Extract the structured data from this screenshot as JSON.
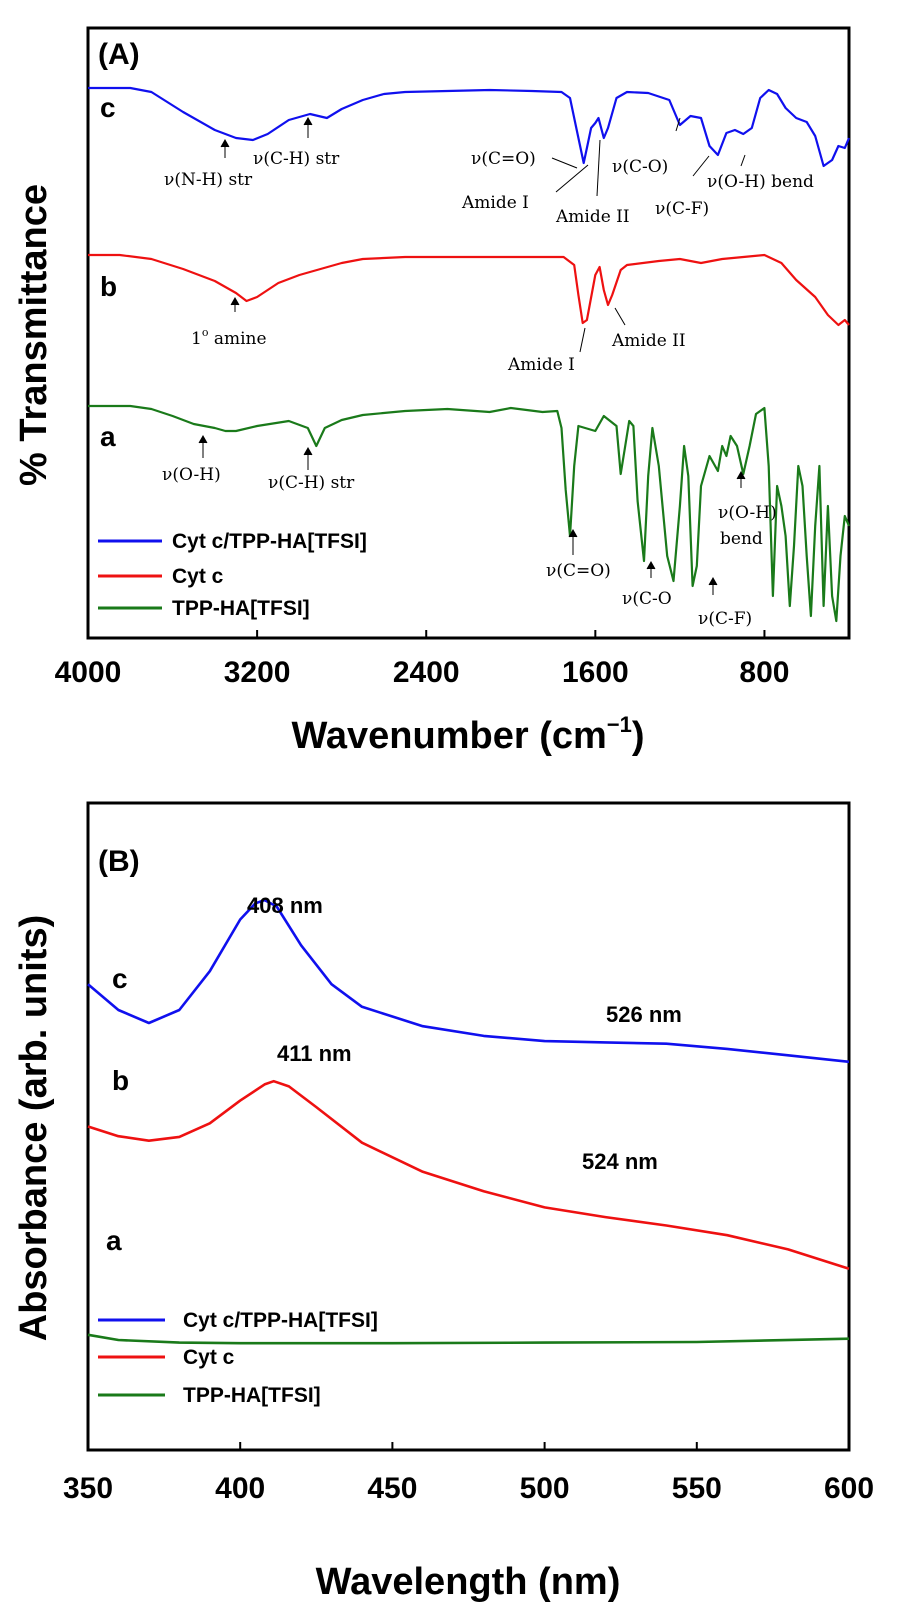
{
  "chart_data": [
    {
      "type": "line",
      "panel_label": "(A)",
      "xlabel": "Wavenumber (cm",
      "xlabel_sup": "−1",
      "xlabel_close": ")",
      "ylabel": "% Transmittance",
      "xlim": [
        4000,
        400
      ],
      "xticks": [
        "4000",
        "3200",
        "2400",
        "1600",
        "800"
      ],
      "grid": false,
      "legend_position": "bottom-left",
      "colors": {
        "a": "#1a7a1a",
        "b": "#ee1111",
        "c": "#1010ee"
      },
      "series": [
        {
          "name": "Cyt c/TPP-HA[TFSI]",
          "trace_label": "c",
          "color": "#1010ee",
          "points": [
            [
              4000,
              0
            ],
            [
              3800,
              0
            ],
            [
              3700,
              -4
            ],
            [
              3550,
              -24
            ],
            [
              3400,
              -42
            ],
            [
              3300,
              -50
            ],
            [
              3220,
              -52
            ],
            [
              3150,
              -46
            ],
            [
              3050,
              -32
            ],
            [
              2950,
              -26
            ],
            [
              2870,
              -30
            ],
            [
              2800,
              -21
            ],
            [
              2700,
              -12
            ],
            [
              2600,
              -6
            ],
            [
              2500,
              -4
            ],
            [
              2300,
              -3
            ],
            [
              2100,
              -2
            ],
            [
              1900,
              -3
            ],
            [
              1760,
              -4
            ],
            [
              1720,
              -10
            ],
            [
              1690,
              -40
            ],
            [
              1655,
              -75
            ],
            [
              1640,
              -60
            ],
            [
              1620,
              -40
            ],
            [
              1600,
              -35
            ],
            [
              1585,
              -30
            ],
            [
              1560,
              -50
            ],
            [
              1540,
              -40
            ],
            [
              1500,
              -10
            ],
            [
              1450,
              -4
            ],
            [
              1350,
              -5
            ],
            [
              1250,
              -12
            ],
            [
              1200,
              -37
            ],
            [
              1150,
              -28
            ],
            [
              1100,
              -30
            ],
            [
              1060,
              -58
            ],
            [
              1020,
              -67
            ],
            [
              980,
              -45
            ],
            [
              940,
              -42
            ],
            [
              900,
              -46
            ],
            [
              860,
              -40
            ],
            [
              820,
              -10
            ],
            [
              780,
              -2
            ],
            [
              740,
              -6
            ],
            [
              700,
              -20
            ],
            [
              650,
              -30
            ],
            [
              600,
              -34
            ],
            [
              560,
              -48
            ],
            [
              520,
              -78
            ],
            [
              480,
              -72
            ],
            [
              450,
              -58
            ],
            [
              420,
              -60
            ],
            [
              400,
              -50
            ]
          ]
        },
        {
          "name": "Cyt c",
          "trace_label": "b",
          "color": "#ee1111",
          "points": [
            [
              4000,
              0
            ],
            [
              3850,
              0
            ],
            [
              3700,
              -4
            ],
            [
              3550,
              -14
            ],
            [
              3400,
              -26
            ],
            [
              3300,
              -38
            ],
            [
              3250,
              -46
            ],
            [
              3200,
              -42
            ],
            [
              3100,
              -28
            ],
            [
              3000,
              -20
            ],
            [
              2900,
              -14
            ],
            [
              2800,
              -8
            ],
            [
              2700,
              -4
            ],
            [
              2500,
              -2
            ],
            [
              2200,
              -2
            ],
            [
              1900,
              -2
            ],
            [
              1750,
              -2
            ],
            [
              1700,
              -10
            ],
            [
              1680,
              -40
            ],
            [
              1660,
              -68
            ],
            [
              1640,
              -65
            ],
            [
              1600,
              -20
            ],
            [
              1580,
              -12
            ],
            [
              1560,
              -35
            ],
            [
              1540,
              -50
            ],
            [
              1520,
              -40
            ],
            [
              1480,
              -15
            ],
            [
              1450,
              -10
            ],
            [
              1300,
              -6
            ],
            [
              1200,
              -4
            ],
            [
              1100,
              -8
            ],
            [
              1000,
              -4
            ],
            [
              900,
              -2
            ],
            [
              800,
              0
            ],
            [
              720,
              -8
            ],
            [
              650,
              -25
            ],
            [
              560,
              -42
            ],
            [
              500,
              -60
            ],
            [
              450,
              -70
            ],
            [
              420,
              -65
            ],
            [
              400,
              -70
            ]
          ]
        },
        {
          "name": "TPP-HA[TFSI]",
          "trace_label": "a",
          "color": "#1a7a1a",
          "points": [
            [
              4000,
              0
            ],
            [
              3800,
              0
            ],
            [
              3700,
              -3
            ],
            [
              3600,
              -10
            ],
            [
              3500,
              -18
            ],
            [
              3400,
              -22
            ],
            [
              3350,
              -25
            ],
            [
              3300,
              -25
            ],
            [
              3200,
              -20
            ],
            [
              3050,
              -15
            ],
            [
              2960,
              -22
            ],
            [
              2920,
              -40
            ],
            [
              2880,
              -22
            ],
            [
              2800,
              -14
            ],
            [
              2700,
              -9
            ],
            [
              2500,
              -5
            ],
            [
              2300,
              -3
            ],
            [
              2100,
              -6
            ],
            [
              2000,
              -2
            ],
            [
              1850,
              -6
            ],
            [
              1780,
              -5
            ],
            [
              1760,
              -22
            ],
            [
              1740,
              -84
            ],
            [
              1720,
              -130
            ],
            [
              1700,
              -60
            ],
            [
              1680,
              -20
            ],
            [
              1600,
              -25
            ],
            [
              1560,
              -10
            ],
            [
              1500,
              -20
            ],
            [
              1480,
              -68
            ],
            [
              1460,
              -42
            ],
            [
              1440,
              -15
            ],
            [
              1420,
              -20
            ],
            [
              1400,
              -95
            ],
            [
              1370,
              -155
            ],
            [
              1350,
              -70
            ],
            [
              1330,
              -22
            ],
            [
              1300,
              -60
            ],
            [
              1260,
              -150
            ],
            [
              1230,
              -175
            ],
            [
              1200,
              -100
            ],
            [
              1180,
              -40
            ],
            [
              1160,
              -70
            ],
            [
              1140,
              -180
            ],
            [
              1120,
              -160
            ],
            [
              1100,
              -80
            ],
            [
              1060,
              -50
            ],
            [
              1020,
              -65
            ],
            [
              1000,
              -40
            ],
            [
              980,
              -50
            ],
            [
              960,
              -30
            ],
            [
              930,
              -40
            ],
            [
              900,
              -68
            ],
            [
              870,
              -40
            ],
            [
              840,
              -8
            ],
            [
              800,
              -2
            ],
            [
              780,
              -60
            ],
            [
              760,
              -190
            ],
            [
              740,
              -80
            ],
            [
              720,
              -100
            ],
            [
              700,
              -130
            ],
            [
              680,
              -200
            ],
            [
              660,
              -140
            ],
            [
              640,
              -60
            ],
            [
              620,
              -80
            ],
            [
              600,
              -150
            ],
            [
              580,
              -210
            ],
            [
              560,
              -120
            ],
            [
              540,
              -60
            ],
            [
              520,
              -200
            ],
            [
              500,
              -100
            ],
            [
              480,
              -190
            ],
            [
              460,
              -215
            ],
            [
              440,
              -150
            ],
            [
              420,
              -110
            ],
            [
              400,
              -120
            ]
          ]
        }
      ],
      "annotations": [
        {
          "text": "ν(N-H) str",
          "group": "c"
        },
        {
          "text": "ν(C-H) str",
          "group": "c"
        },
        {
          "text": "ν(C=O)",
          "group": "c"
        },
        {
          "text": "Amide I",
          "group": "c"
        },
        {
          "text": "Amide II",
          "group": "c"
        },
        {
          "text": "ν(C-O)",
          "group": "c"
        },
        {
          "text": "ν(C-F)",
          "group": "c"
        },
        {
          "text": "ν(O-H) bend",
          "group": "c"
        },
        {
          "text": "1",
          "sup": "o",
          "rest": " amine",
          "group": "b"
        },
        {
          "text": "Amide I",
          "group": "b"
        },
        {
          "text": "Amide II",
          "group": "b"
        },
        {
          "text": "ν(O-H)",
          "group": "a"
        },
        {
          "text": "ν(C-H) str",
          "group": "a"
        },
        {
          "text": "ν(C=O)",
          "group": "a"
        },
        {
          "text": "ν(C-O",
          "group": "a"
        },
        {
          "text": "ν(C-F)",
          "group": "a"
        },
        {
          "text": "ν(O-H)",
          "group": "a"
        },
        {
          "text": "bend",
          "group": "a"
        }
      ]
    },
    {
      "type": "line",
      "panel_label": "(B)",
      "xlabel": "Wavelength (nm)",
      "ylabel": "Absorbance (arb. units)",
      "xlim": [
        350,
        600
      ],
      "xticks": [
        "350",
        "400",
        "450",
        "500",
        "550",
        "600"
      ],
      "grid": false,
      "legend_position": "bottom-left",
      "series": [
        {
          "name": "Cyt c/TPP-HA[TFSI]",
          "trace_label": "c",
          "color": "#1010ee",
          "points": [
            [
              350,
              0.72
            ],
            [
              360,
              0.68
            ],
            [
              370,
              0.66
            ],
            [
              380,
              0.68
            ],
            [
              390,
              0.74
            ],
            [
              400,
              0.82
            ],
            [
              405,
              0.845
            ],
            [
              408,
              0.85
            ],
            [
              412,
              0.84
            ],
            [
              420,
              0.78
            ],
            [
              430,
              0.72
            ],
            [
              440,
              0.685
            ],
            [
              460,
              0.655
            ],
            [
              480,
              0.64
            ],
            [
              500,
              0.632
            ],
            [
              520,
              0.63
            ],
            [
              540,
              0.628
            ],
            [
              560,
              0.62
            ],
            [
              580,
              0.61
            ],
            [
              600,
              0.6
            ]
          ]
        },
        {
          "name": "Cyt c",
          "trace_label": "b",
          "color": "#ee1111",
          "points": [
            [
              350,
              0.5
            ],
            [
              360,
              0.485
            ],
            [
              370,
              0.478
            ],
            [
              380,
              0.484
            ],
            [
              390,
              0.505
            ],
            [
              400,
              0.54
            ],
            [
              408,
              0.565
            ],
            [
              411,
              0.57
            ],
            [
              416,
              0.562
            ],
            [
              425,
              0.53
            ],
            [
              440,
              0.475
            ],
            [
              460,
              0.43
            ],
            [
              480,
              0.4
            ],
            [
              500,
              0.375
            ],
            [
              520,
              0.36
            ],
            [
              540,
              0.347
            ],
            [
              560,
              0.332
            ],
            [
              580,
              0.31
            ],
            [
              600,
              0.28
            ]
          ]
        },
        {
          "name": "TPP-HA[TFSI]",
          "trace_label": "a",
          "color": "#1a7a1a",
          "points": [
            [
              350,
              0.178
            ],
            [
              360,
              0.17
            ],
            [
              380,
              0.166
            ],
            [
              400,
              0.165
            ],
            [
              450,
              0.165
            ],
            [
              500,
              0.166
            ],
            [
              550,
              0.167
            ],
            [
              600,
              0.172
            ]
          ]
        }
      ],
      "annotations": [
        {
          "text": "408 nm",
          "x": 408,
          "series": "c"
        },
        {
          "text": "526 nm",
          "x": 526,
          "series": "c"
        },
        {
          "text": "411 nm",
          "x": 411,
          "series": "b"
        },
        {
          "text": "524 nm",
          "x": 524,
          "series": "b"
        }
      ]
    }
  ]
}
